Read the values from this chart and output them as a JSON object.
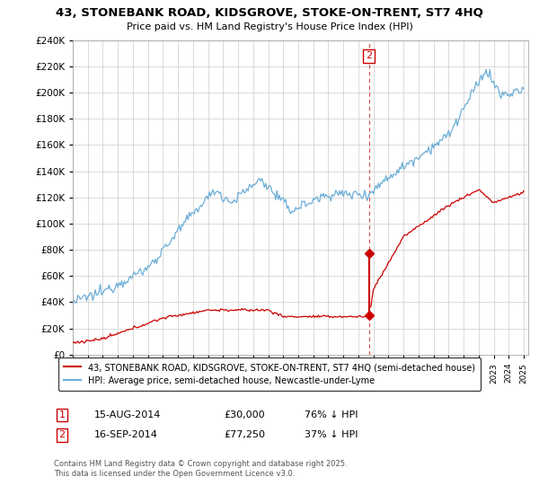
{
  "title": "43, STONEBANK ROAD, KIDSGROVE, STOKE-ON-TRENT, ST7 4HQ",
  "subtitle": "Price paid vs. HM Land Registry's House Price Index (HPI)",
  "legend_line1": "43, STONEBANK ROAD, KIDSGROVE, STOKE-ON-TRENT, ST7 4HQ (semi-detached house)",
  "legend_line2": "HPI: Average price, semi-detached house, Newcastle-under-Lyme",
  "footer": "Contains HM Land Registry data © Crown copyright and database right 2025.\nThis data is licensed under the Open Government Licence v3.0.",
  "transaction1": {
    "label": "1",
    "date": "15-AUG-2014",
    "price": "£30,000",
    "hpi": "76% ↓ HPI"
  },
  "transaction2": {
    "label": "2",
    "date": "16-SEP-2014",
    "price": "£77,250",
    "hpi": "37% ↓ HPI"
  },
  "hpi_color": "#6baed6",
  "price_color": "#cc0000",
  "dashed_line_color": "#cc0000",
  "annotation_box_color": "#cc0000",
  "ylim": [
    0,
    240000
  ],
  "start_year": 1995,
  "end_year": 2025,
  "transaction_year": 2014.71,
  "t1_price": 30000,
  "t2_price": 77250
}
